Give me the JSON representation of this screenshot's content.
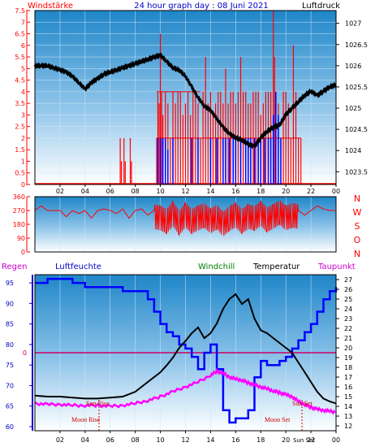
{
  "header": {
    "left_label": "Windstärke",
    "title": "24 hour graph day : 08 Juni 2021",
    "right_label": "Luftdruck"
  },
  "wind_dir_letters": [
    "N",
    "W",
    "S",
    "O",
    "N"
  ],
  "bottom_header": {
    "regen": "Regen",
    "luftfeuchte": "Luftfeuchte",
    "windchill": "Windchill",
    "temperatur": "Temperatur",
    "taupunkt": "Taupunkt"
  },
  "x_tick_labels": [
    "02",
    "04",
    "06",
    "08",
    "10",
    "12",
    "14",
    "16",
    "18",
    "20",
    "22",
    "00"
  ],
  "colors": {
    "frame": "#ff0000",
    "wind": "#ff0000",
    "gust": "#0000ff",
    "pressure": "#000000",
    "humidity": "#0000ff",
    "temperature": "#000000",
    "dewpoint": "#ff00ff",
    "windchill": "#008000",
    "rain_axis": "#0000ff",
    "zero_line": "#cc0066"
  },
  "chart_data": [
    {
      "type": "line",
      "name": "wind-pressure",
      "x_unit": "hour",
      "xlim": [
        0,
        24
      ],
      "y_left": {
        "ylim": [
          0,
          7.5
        ],
        "ticks": [
          "0",
          "0.5",
          "1",
          "1.5",
          "2",
          "2.5",
          "3",
          "3.5",
          "4",
          "4.5",
          "5",
          "5.5",
          "6",
          "6.5",
          "7",
          "7.5"
        ]
      },
      "y_right": {
        "ylim": [
          1023.2,
          1027.3
        ],
        "ticks": [
          "1027",
          "1026.5",
          "1026",
          "1025.5",
          "1025",
          "1024.5",
          "1024",
          "1023.5"
        ]
      },
      "pressure": {
        "x": [
          0.0,
          0.5,
          1.0,
          1.5,
          2.0,
          2.5,
          3.0,
          3.5,
          4.0,
          4.5,
          5.0,
          5.5,
          6.0,
          6.5,
          7.0,
          7.5,
          8.0,
          8.5,
          9.0,
          9.5,
          10.0,
          10.5,
          11.0,
          11.5,
          12.0,
          12.5,
          13.0,
          13.5,
          14.0,
          14.5,
          15.0,
          15.5,
          16.0,
          16.5,
          17.0,
          17.5,
          18.0,
          18.5,
          19.0,
          19.5,
          20.0,
          20.5,
          21.0,
          21.5,
          22.0,
          22.5,
          23.0,
          23.5,
          24.0
        ],
        "y": [
          1026.0,
          1026.0,
          1026.0,
          1025.95,
          1025.9,
          1025.85,
          1025.75,
          1025.6,
          1025.45,
          1025.6,
          1025.7,
          1025.8,
          1025.85,
          1025.9,
          1025.95,
          1026.0,
          1026.05,
          1026.1,
          1026.15,
          1026.2,
          1026.25,
          1026.1,
          1025.95,
          1025.9,
          1025.75,
          1025.5,
          1025.25,
          1025.05,
          1024.95,
          1024.75,
          1024.55,
          1024.4,
          1024.3,
          1024.25,
          1024.15,
          1024.1,
          1024.3,
          1024.45,
          1024.55,
          1024.6,
          1024.85,
          1025.0,
          1025.15,
          1025.3,
          1025.4,
          1025.3,
          1025.4,
          1025.5,
          1025.55
        ]
      },
      "wind_bars": {
        "x": [
          6.8,
          6.9,
          7.1,
          7.2,
          7.6,
          7.7,
          9.7,
          9.8,
          9.9,
          10.0,
          10.1,
          10.2,
          10.4,
          10.6,
          10.8,
          11.0,
          11.2,
          11.4,
          11.6,
          11.8,
          12.0,
          12.2,
          12.4,
          12.6,
          12.8,
          13.0,
          13.2,
          13.4,
          13.6,
          13.8,
          14.0,
          14.2,
          14.4,
          14.6,
          14.8,
          15.0,
          15.2,
          15.4,
          15.6,
          15.8,
          16.0,
          16.2,
          16.4,
          16.6,
          16.8,
          17.0,
          17.2,
          17.4,
          17.6,
          17.8,
          18.0,
          18.2,
          18.4,
          18.6,
          18.8,
          19.0,
          19.1,
          19.2,
          19.4,
          19.6,
          19.8,
          20.0,
          20.2,
          20.4,
          20.6,
          20.8,
          21.0,
          21.2
        ],
        "y": [
          2,
          1,
          2,
          1,
          2,
          1,
          2,
          4,
          3.5,
          6.5,
          4,
          3,
          4,
          3.5,
          2,
          4,
          3.5,
          4,
          4,
          3,
          3.5,
          4,
          3,
          4,
          4,
          3.5,
          2,
          4,
          5.5,
          3.5,
          4,
          3,
          3.5,
          4,
          4,
          3.5,
          5,
          3.5,
          4,
          4,
          3.5,
          4,
          5.5,
          4,
          4,
          3.5,
          3.5,
          4,
          4,
          4,
          3,
          3.5,
          4,
          4,
          4,
          7.5,
          5.5,
          4,
          3.5,
          2,
          4,
          4,
          3.5,
          2,
          6,
          4,
          2,
          2
        ]
      },
      "gust_bars": {
        "x": [
          9.8,
          10.0,
          10.2,
          10.4,
          10.6,
          11.0,
          12.5,
          13.0,
          14.0,
          14.5,
          15.0,
          15.2,
          15.5,
          15.8,
          16.0,
          16.4,
          16.8,
          17.0,
          17.2,
          17.5,
          17.8,
          18.0,
          18.3,
          18.6,
          18.8,
          19.0,
          19.2,
          19.4,
          19.6
        ],
        "y": [
          2,
          2,
          2,
          2,
          1.5,
          2,
          2,
          2,
          2,
          2,
          2,
          2,
          2,
          2,
          2,
          2,
          2,
          2,
          2,
          2,
          2,
          2,
          2,
          2,
          2,
          3,
          4,
          3,
          2
        ]
      }
    },
    {
      "type": "line",
      "name": "wind-direction",
      "xlim": [
        0,
        24
      ],
      "ylim": [
        0,
        360
      ],
      "ticks": [
        "360",
        "270",
        "180",
        "90",
        "0"
      ],
      "series_dir": {
        "x": [
          0.0,
          0.5,
          1.0,
          2.0,
          2.5,
          3.0,
          3.5,
          4.0,
          4.5,
          5.0,
          5.5,
          6.0,
          6.5,
          7.0,
          7.5,
          8.0,
          8.5,
          9.0,
          9.5,
          10.0,
          10.5,
          11.0,
          11.5,
          12.0,
          12.5,
          13.0,
          13.5,
          14.0,
          14.5,
          15.0,
          15.5,
          16.0,
          16.5,
          17.0,
          17.5,
          18.0,
          18.5,
          19.0,
          19.5,
          20.0,
          20.5,
          21.0,
          21.5,
          22.0,
          22.5,
          23.0,
          23.5,
          24.0
        ],
        "y": [
          270,
          300,
          270,
          270,
          230,
          270,
          250,
          270,
          220,
          270,
          280,
          270,
          250,
          280,
          220,
          270,
          280,
          240,
          270,
          260,
          240,
          290,
          230,
          280,
          240,
          260,
          280,
          240,
          270,
          220,
          260,
          280,
          240,
          270,
          260,
          290,
          250,
          270,
          300,
          260,
          280,
          270,
          240,
          270,
          300,
          280,
          270,
          270
        ]
      }
    },
    {
      "type": "line",
      "name": "temperature-humidity",
      "xlim": [
        0,
        24
      ],
      "y_left": {
        "ylim": [
          59,
          97
        ],
        "ticks": [
          "95",
          "90",
          "85",
          "80",
          "75",
          "70",
          "65",
          "60"
        ]
      },
      "y_right": {
        "ylim": [
          11.5,
          27.5
        ],
        "ticks": [
          "27",
          "26",
          "25",
          "24",
          "23",
          "22",
          "21",
          "20",
          "19",
          "18",
          "17",
          "16",
          "15",
          "14",
          "13",
          "12"
        ]
      },
      "rain_axis_zero_label": "0",
      "annotations": [
        "Sun Rise",
        "Moon Rise",
        "Moon Set",
        "Sun Set"
      ],
      "series": [
        {
          "name": "Luftfeuchte",
          "x": [
            0,
            1,
            2,
            3,
            3.5,
            4,
            5,
            6,
            7,
            8,
            9,
            9.5,
            10,
            10.5,
            11,
            11.5,
            12,
            12.5,
            13,
            13.5,
            14,
            14.5,
            15,
            15.5,
            16,
            16.5,
            17,
            17.5,
            18,
            18.5,
            19,
            19.5,
            20,
            20.5,
            21,
            21.5,
            22,
            22.5,
            23,
            23.5,
            24
          ],
          "y": [
            95,
            96,
            96,
            95,
            95,
            94,
            94,
            94,
            93,
            93,
            91,
            88,
            85,
            83,
            82,
            80,
            79,
            77,
            74,
            78,
            80,
            74,
            64,
            61,
            62,
            62,
            64,
            72,
            76,
            75,
            75,
            76,
            77,
            79,
            81,
            83,
            85,
            88,
            91,
            93,
            94
          ]
        },
        {
          "name": "Temperatur",
          "x": [
            0,
            1,
            2,
            3,
            4,
            5,
            6,
            7,
            8,
            8.5,
            9,
            9.5,
            10,
            10.5,
            11,
            11.5,
            12,
            12.5,
            13,
            13.5,
            14,
            14.5,
            15,
            15.5,
            16,
            16.5,
            17,
            17.5,
            18,
            18.5,
            19,
            19.5,
            20,
            20.5,
            21,
            21.5,
            22,
            22.5,
            23,
            23.5,
            24
          ],
          "y": [
            15.1,
            15.0,
            15.0,
            14.9,
            14.8,
            14.8,
            14.9,
            15.0,
            15.5,
            16.0,
            16.5,
            17.0,
            17.5,
            18.2,
            19.0,
            20.0,
            20.7,
            21.5,
            22.1,
            21.0,
            21.5,
            22.5,
            24.0,
            25.0,
            25.5,
            24.5,
            25.0,
            23.0,
            21.8,
            21.5,
            21.0,
            20.5,
            20.0,
            19.5,
            18.5,
            17.5,
            16.5,
            15.5,
            14.8,
            14.5,
            14.3
          ]
        },
        {
          "name": "Taupunkt",
          "x": [
            0,
            1,
            2,
            3,
            4,
            5,
            6,
            7,
            8,
            9,
            10,
            11,
            12,
            13,
            14,
            14.5,
            15,
            15.5,
            16,
            16.5,
            17,
            17.5,
            18,
            18.5,
            19,
            19.5,
            20,
            20.5,
            21,
            21.5,
            22,
            22.5,
            23,
            23.5,
            24
          ],
          "y": [
            14.3,
            14.2,
            14.2,
            14.1,
            14.1,
            14.1,
            14.0,
            14.1,
            14.3,
            14.6,
            15.0,
            15.5,
            16.0,
            16.5,
            17.2,
            17.6,
            17.4,
            17.0,
            16.8,
            16.7,
            16.4,
            16.2,
            16.0,
            15.8,
            15.6,
            15.4,
            15.2,
            15.0,
            14.5,
            14.2,
            13.9,
            13.7,
            13.6,
            13.5,
            13.4
          ]
        }
      ]
    }
  ]
}
